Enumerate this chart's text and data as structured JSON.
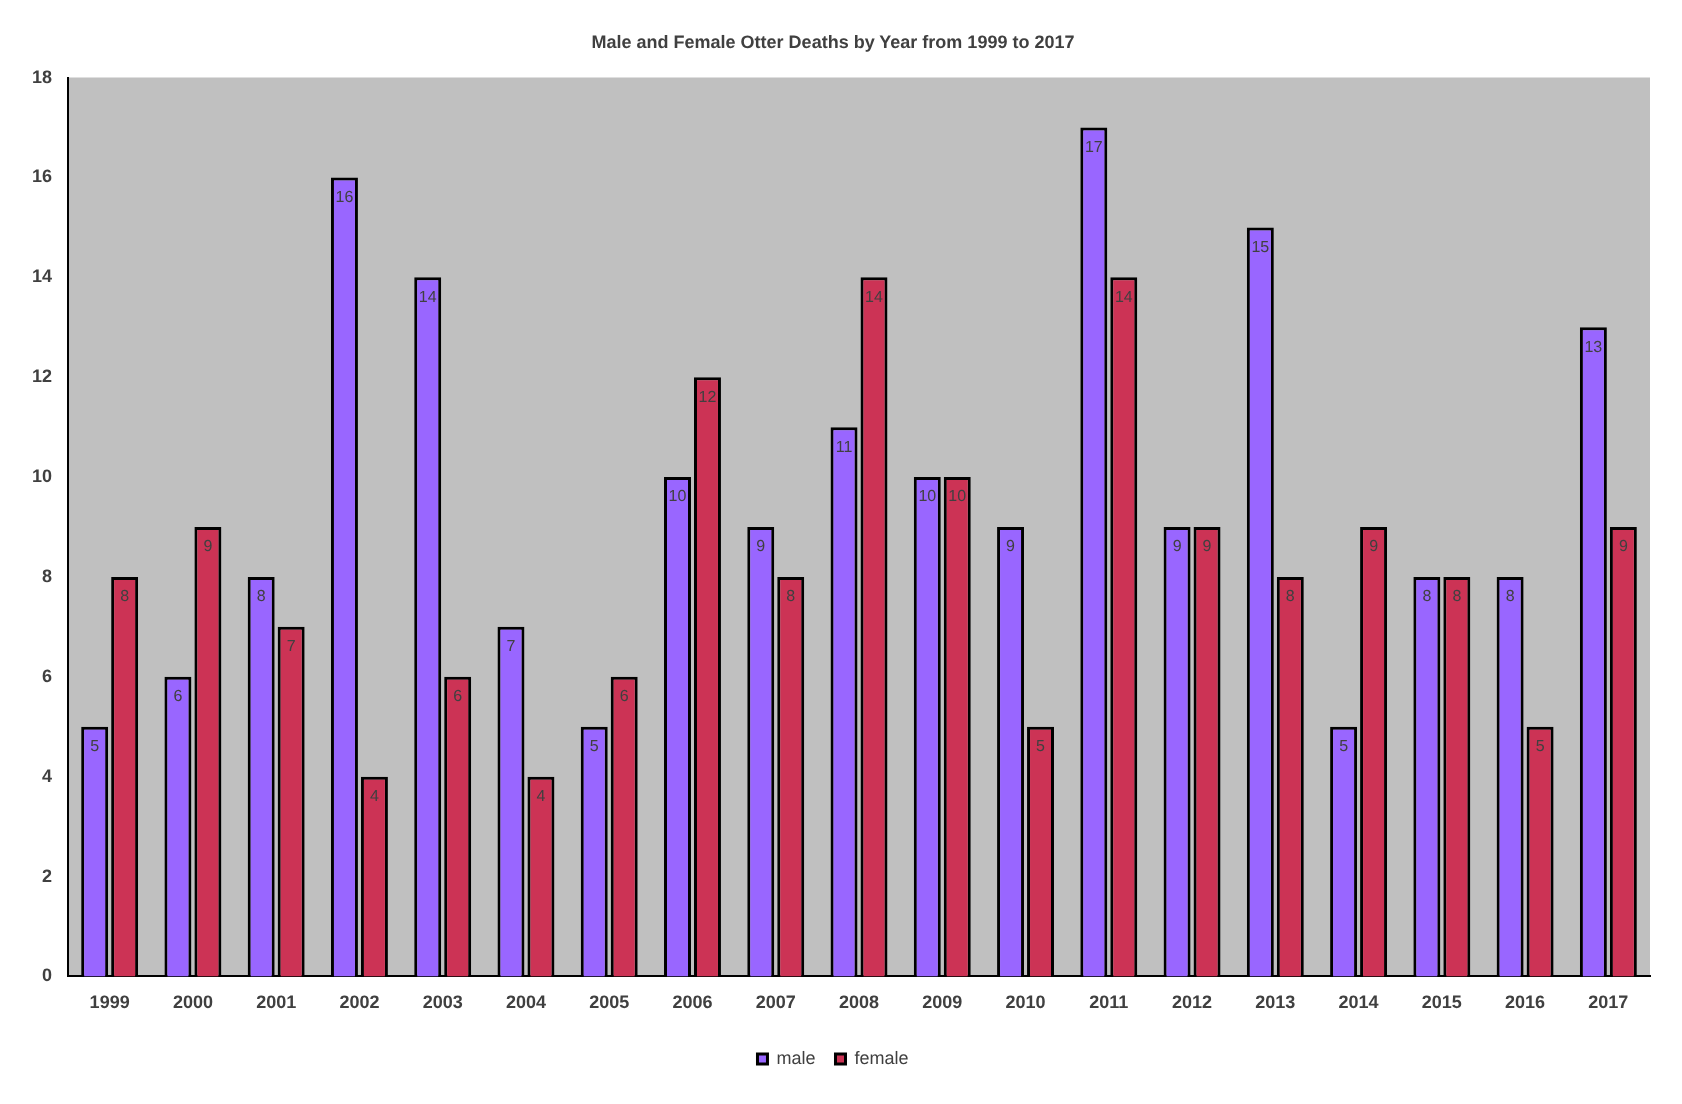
{
  "chart_data": {
    "type": "bar",
    "title": "Male and Female Otter Deaths by Year from 1999 to 2017",
    "categories": [
      "1999",
      "2000",
      "2001",
      "2002",
      "2003",
      "2004",
      "2005",
      "2006",
      "2007",
      "2008",
      "2009",
      "2010",
      "2011",
      "2012",
      "2013",
      "2014",
      "2015",
      "2016",
      "2017"
    ],
    "series": [
      {
        "name": "male",
        "color": "#9966ff",
        "values": [
          5,
          6,
          8,
          16,
          14,
          7,
          5,
          10,
          9,
          11,
          10,
          9,
          17,
          9,
          15,
          5,
          8,
          8,
          13
        ]
      },
      {
        "name": "female",
        "color": "#cc3355",
        "values": [
          8,
          9,
          7,
          4,
          6,
          4,
          6,
          12,
          8,
          14,
          10,
          5,
          14,
          9,
          8,
          9,
          8,
          5,
          9
        ]
      }
    ],
    "ylim": [
      0,
      18
    ],
    "yticks": [
      0,
      2,
      4,
      6,
      8,
      10,
      12,
      14,
      16,
      18
    ],
    "grid": false,
    "legend": "bottom",
    "data_labels": true
  }
}
